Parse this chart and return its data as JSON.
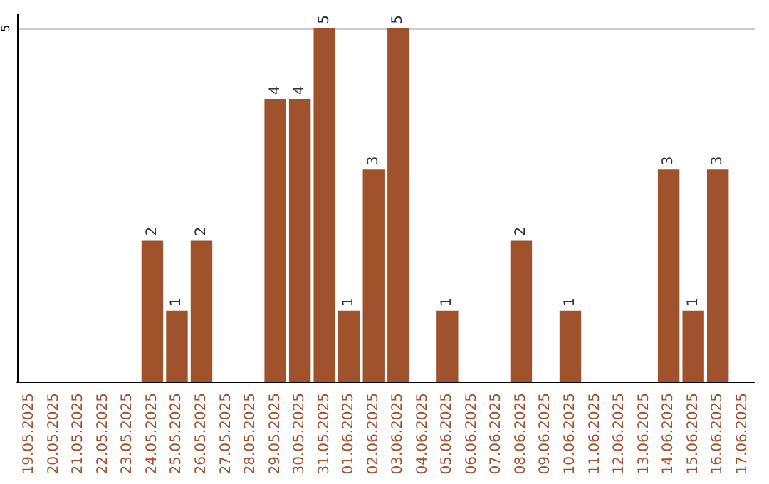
{
  "chart_data": {
    "type": "bar",
    "categories": [
      "19.05.2025",
      "20.05.2025",
      "21.05.2025",
      "22.05.2025",
      "23.05.2025",
      "24.05.2025",
      "25.05.2025",
      "26.05.2025",
      "27.05.2025",
      "28.05.2025",
      "29.05.2025",
      "30.05.2025",
      "31.05.2025",
      "01.06.2025",
      "02.06.2025",
      "03.06.2025",
      "04.06.2025",
      "05.06.2025",
      "06.06.2025",
      "07.06.2025",
      "08.06.2025",
      "09.06.2025",
      "10.06.2025",
      "11.06.2025",
      "12.06.2025",
      "13.06.2025",
      "14.06.2025",
      "15.06.2025",
      "16.06.2025",
      "17.06.2025"
    ],
    "values": [
      0,
      0,
      0,
      0,
      0,
      2,
      1,
      2,
      0,
      0,
      4,
      4,
      5,
      1,
      3,
      5,
      0,
      1,
      0,
      0,
      2,
      0,
      1,
      0,
      0,
      0,
      3,
      1,
      3,
      0
    ],
    "value_labels": [
      null,
      null,
      null,
      null,
      null,
      "2",
      "1",
      "2",
      null,
      null,
      "4",
      "4",
      "5",
      "1",
      "3",
      "5",
      null,
      "1",
      null,
      null,
      "2",
      null,
      "1",
      null,
      null,
      null,
      "3",
      "1",
      "3",
      null
    ],
    "color": "#a0522d",
    "ylim": [
      0,
      5.2
    ],
    "yticks": [
      5
    ],
    "grid": "y"
  }
}
